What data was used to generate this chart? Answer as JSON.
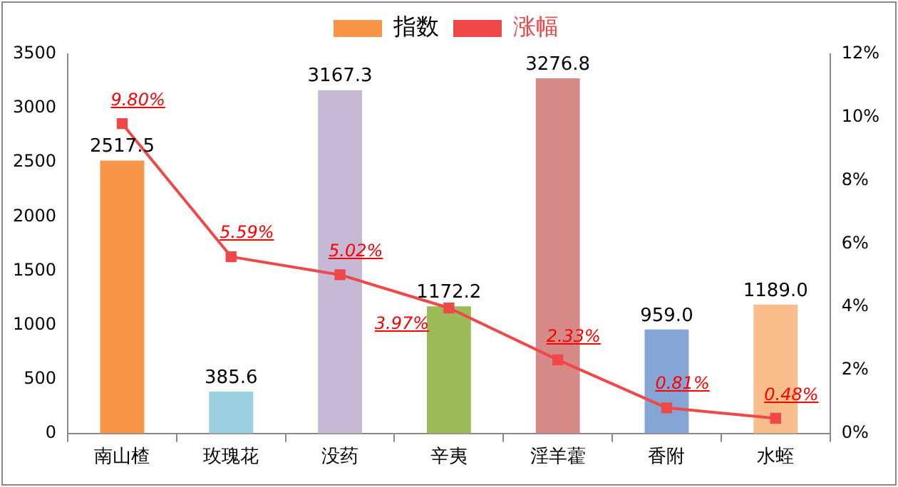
{
  "chart_data": {
    "type": "bar",
    "categories": [
      "南山楂",
      "玫瑰花",
      "没药",
      "辛夷",
      "淫羊藿",
      "香附",
      "水蛭"
    ],
    "series": [
      {
        "name": "指数",
        "color": "#f79646",
        "colors": [
          "#f79646",
          "#9ccfe0",
          "#c6b9d6",
          "#9bbb59",
          "#d58a88",
          "#85a6d4",
          "#f9be8c"
        ],
        "values": [
          2517.5,
          385.6,
          3167.3,
          1172.2,
          3276.8,
          959.0,
          1189.0
        ],
        "value_labels": [
          "2517.5",
          "385.6",
          "3167.3",
          "1172.2",
          "3276.8",
          "959.0",
          "1189.0"
        ]
      },
      {
        "name": "涨幅",
        "type": "line",
        "axis": "y2",
        "color": "#f04848",
        "marker": "square",
        "values": [
          9.8,
          5.59,
          5.02,
          3.97,
          2.33,
          0.81,
          0.48
        ],
        "value_labels": [
          "9.80%",
          "5.59%",
          "5.02%",
          "3.97%",
          "2.33%",
          "0.81%",
          "0.48%"
        ]
      }
    ],
    "ylim": [
      0,
      3500
    ],
    "yticks": [
      0,
      500,
      1000,
      1500,
      2000,
      2500,
      3000,
      3500
    ],
    "y2lim": [
      0,
      12
    ],
    "y2ticks": [
      {
        "value": 0,
        "label": "0%"
      },
      {
        "value": 2,
        "label": "2%"
      },
      {
        "value": 4,
        "label": "4%"
      },
      {
        "value": 6,
        "label": "6%"
      },
      {
        "value": 8,
        "label": "8%"
      },
      {
        "value": 10,
        "label": "10%"
      },
      {
        "value": 12,
        "label": "12%"
      }
    ],
    "grid": false,
    "legend": "top"
  }
}
